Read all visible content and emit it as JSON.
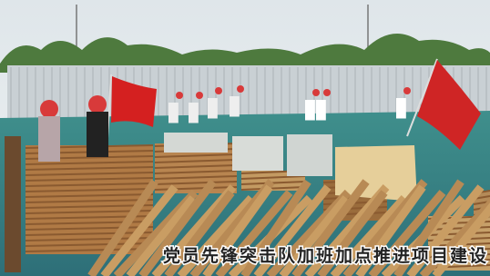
{
  "caption": "党员先锋突击队加班加点推进项目建设"
}
